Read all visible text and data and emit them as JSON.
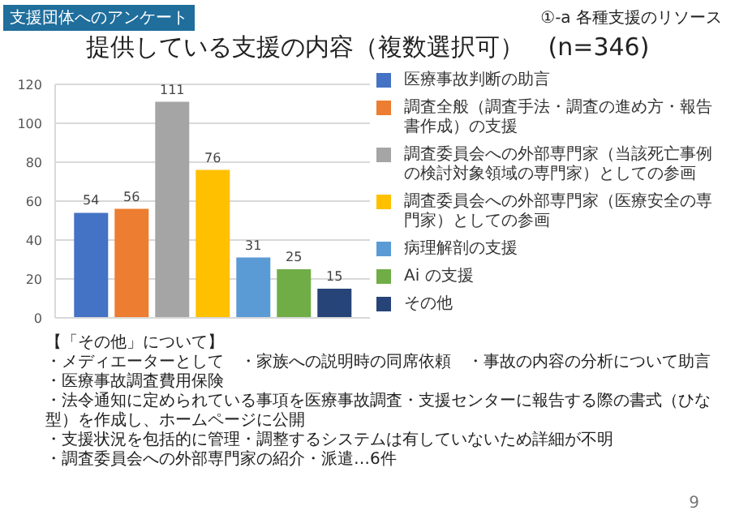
{
  "chart_data": {
    "type": "bar",
    "title": "提供している支援の内容（複数選択可）　(n=346)",
    "categories": [
      null
    ],
    "series": [
      {
        "name": "医療事故判断の助言",
        "color": "#4472c4",
        "values": [
          54
        ]
      },
      {
        "name": "調査全般（調査手法・調査の進め方・報告書作成）の支援",
        "color": "#ed7d31",
        "values": [
          56
        ]
      },
      {
        "name": "調査委員会への外部専門家（当該死亡事例の検討対象領域の専門家）としての参画",
        "color": "#a5a5a5",
        "values": [
          111
        ]
      },
      {
        "name": "調査委員会への外部専門家（医療安全の専門家）としての参画",
        "color": "#ffc000",
        "values": [
          76
        ]
      },
      {
        "name": "病理解剖の支援",
        "color": "#5b9bd5",
        "values": [
          31
        ]
      },
      {
        "name": "Ai の支援",
        "color": "#70ad47",
        "values": [
          25
        ]
      },
      {
        "name": "その他",
        "color": "#264478",
        "values": [
          15
        ]
      }
    ],
    "ylim": [
      0,
      120
    ],
    "yticks": [
      0,
      20,
      40,
      60,
      80,
      100,
      120
    ],
    "grid": "y",
    "legend": "right",
    "data_labels": true,
    "annotations": [
      "支援団体へのアンケート",
      "①-a 各種支援のリソース",
      "【「その他」について】",
      "・メディエーターとして",
      "・家族への説明時の同席依頼",
      "・事故の内容の分析について助言",
      "・医療事故調査費用保険",
      "・法令通知に定められている事項を医療事故調査・支援センターに報告する際の書式（ひな型）を作成し、ホームページに公開",
      "・支援状況を包括的に管理・調整するシステムは有していないため詳細が不明",
      "・調査委員会への外部専門家の紹介・派遣…6件",
      "9"
    ]
  }
}
